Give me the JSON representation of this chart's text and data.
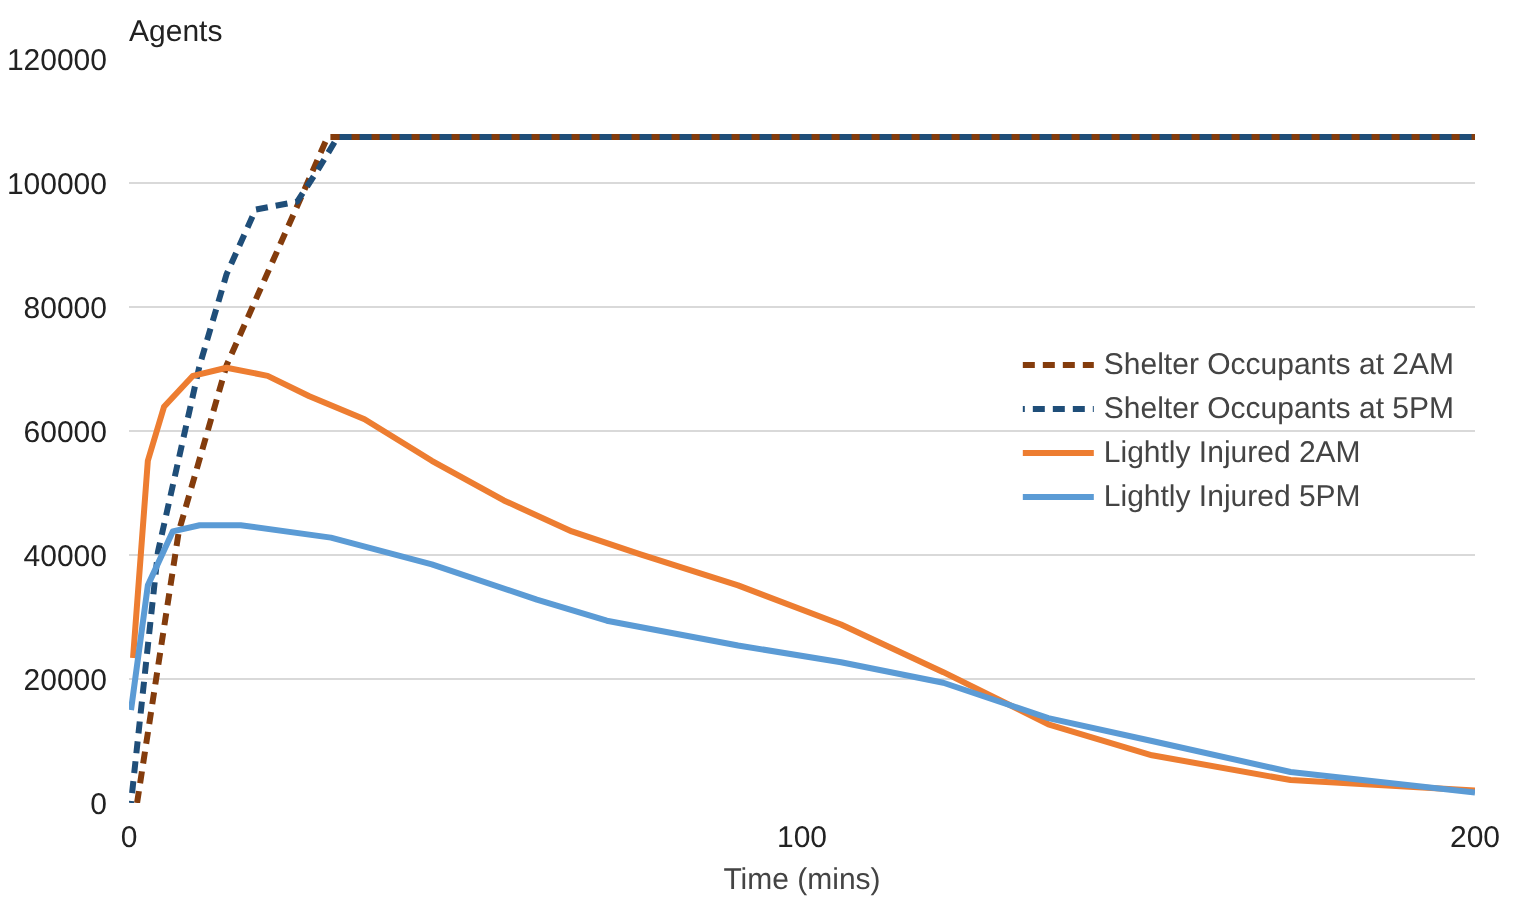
{
  "chart_data": {
    "type": "line",
    "xlabel": "Time (mins)",
    "ylabel": "Agents",
    "xlim": [
      0,
      200
    ],
    "ylim": [
      0,
      120000
    ],
    "xticks": [
      0,
      100,
      200
    ],
    "yticks": [
      0,
      20000,
      40000,
      60000,
      80000,
      100000,
      120000
    ],
    "grid": "y",
    "legend": "right",
    "series": [
      {
        "name": "Shelter Occupants at 2AM",
        "color": "#843c0c",
        "line_style": "dashed",
        "x": [
          1.2,
          7.4,
          14.5,
          25,
          29.5,
          200
        ],
        "values": [
          0,
          43800,
          70600,
          96300,
          107400,
          107400
        ]
      },
      {
        "name": "Shelter Occupants at 5PM",
        "color": "#1f4e79",
        "line_style": "dashed",
        "x": [
          0.3,
          4.3,
          10.5,
          14.5,
          18.8,
          25,
          28,
          31,
          200
        ],
        "values": [
          0,
          40500,
          70600,
          85300,
          95700,
          97000,
          102000,
          107400,
          107400
        ]
      },
      {
        "name": "Lightly Injured 2AM",
        "color": "#ed7d31",
        "line_style": "solid",
        "x": [
          0.6,
          2.8,
          5.2,
          9.5,
          14.5,
          20.6,
          26.8,
          35,
          45,
          55.7,
          65.8,
          76,
          90.5,
          105.8,
          121,
          136.6,
          152,
          172.6,
          200
        ],
        "values": [
          23400,
          55200,
          63900,
          68900,
          70200,
          68900,
          65600,
          61900,
          55200,
          48800,
          43800,
          40100,
          35100,
          28800,
          21100,
          12700,
          7700,
          3700,
          2000
        ]
      },
      {
        "name": "Lightly Injured 5PM",
        "color": "#5b9bd5",
        "line_style": "solid",
        "x": [
          0.3,
          2.8,
          6.5,
          10.5,
          16.6,
          30,
          45,
          60.6,
          71,
          90.5,
          105.8,
          121,
          136.6,
          152,
          172.6,
          200
        ],
        "values": [
          15000,
          35100,
          43800,
          44800,
          44800,
          42800,
          38500,
          32800,
          29400,
          25400,
          22700,
          19400,
          13700,
          10000,
          5000,
          1700
        ]
      }
    ]
  }
}
